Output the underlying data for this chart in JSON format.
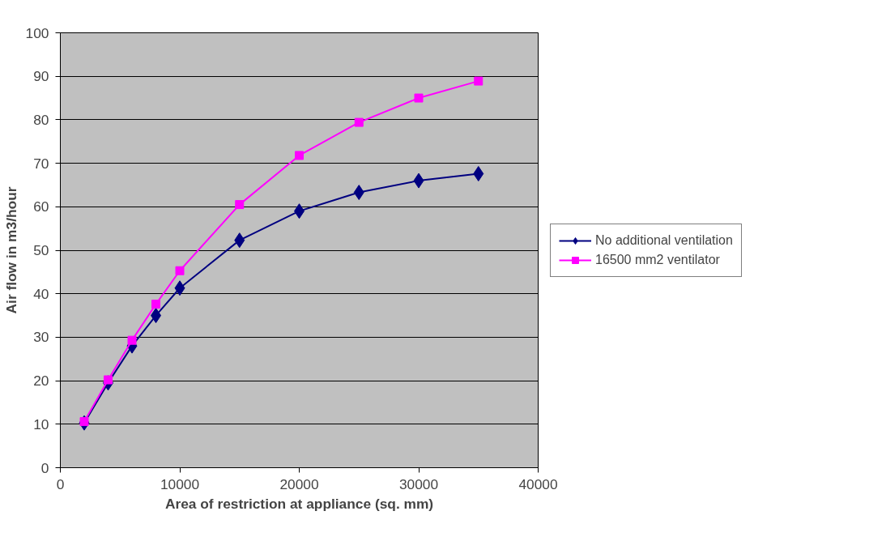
{
  "chart_data": {
    "type": "line",
    "xlabel": "Area of restriction at appliance (sq. mm)",
    "ylabel": "Air flow in m3/hour",
    "x": [
      2000,
      4000,
      6000,
      8000,
      10000,
      15000,
      20000,
      25000,
      30000,
      35000
    ],
    "series": [
      {
        "name": "No additional ventilation",
        "color": "#000080",
        "marker": "diamond",
        "values": [
          10.3,
          19.5,
          28,
          35,
          41.3,
          52.3,
          59,
          63.3,
          66,
          67.6
        ]
      },
      {
        "name": "16500 mm2 ventilator",
        "color": "#ff00ff",
        "marker": "square",
        "values": [
          10.6,
          20.2,
          29.3,
          37.6,
          45.3,
          60.5,
          71.8,
          79.4,
          85,
          88.9
        ]
      }
    ],
    "xlim": [
      0,
      40000
    ],
    "xticks": [
      0,
      10000,
      20000,
      30000,
      40000
    ],
    "ylim": [
      0,
      100
    ],
    "yticks": [
      0,
      10,
      20,
      30,
      40,
      50,
      60,
      70,
      80,
      90,
      100
    ],
    "grid": "y",
    "legend": "right",
    "line_style": "solid"
  }
}
